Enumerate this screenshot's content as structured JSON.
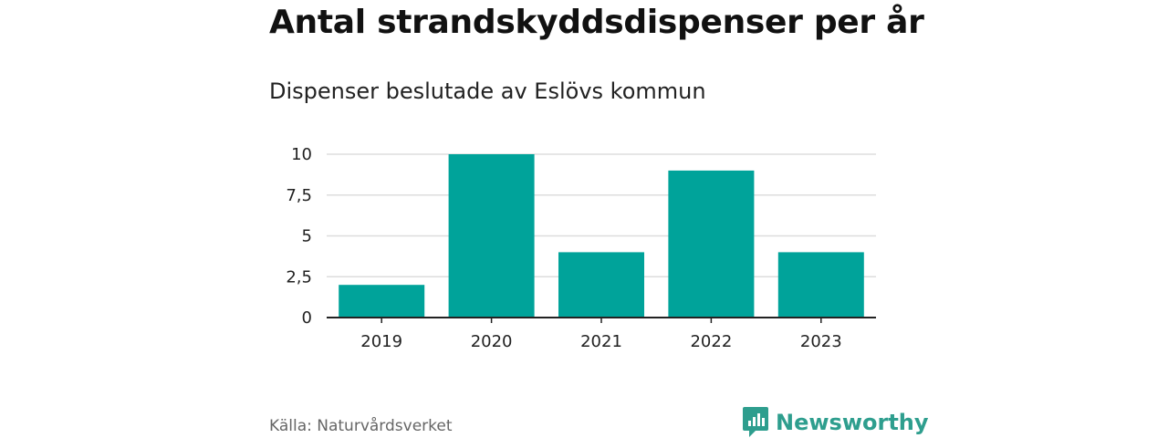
{
  "title": "Antal strandskyddsdispenser per år",
  "subtitle": "Dispenser beslutade av Eslövs kommun",
  "source": "Källa: Naturvårdsverket",
  "brand": "Newsworthy",
  "colors": {
    "bar": "#00a39a",
    "brand": "#2e9e8e",
    "grid": "#dddddd",
    "axis": "#222222"
  },
  "chart_data": {
    "type": "bar",
    "title": "Antal strandskyddsdispenser per år",
    "subtitle": "Dispenser beslutade av Eslövs kommun",
    "categories": [
      "2019",
      "2020",
      "2021",
      "2022",
      "2023"
    ],
    "values": [
      2,
      10,
      4,
      9,
      4
    ],
    "xlabel": "",
    "ylabel": "",
    "ylim": [
      0,
      10
    ],
    "yticks": [
      0,
      2.5,
      5,
      7.5,
      10
    ],
    "ytick_labels": [
      "0",
      "2,5",
      "5",
      "7,5",
      "10"
    ],
    "grid": true
  }
}
